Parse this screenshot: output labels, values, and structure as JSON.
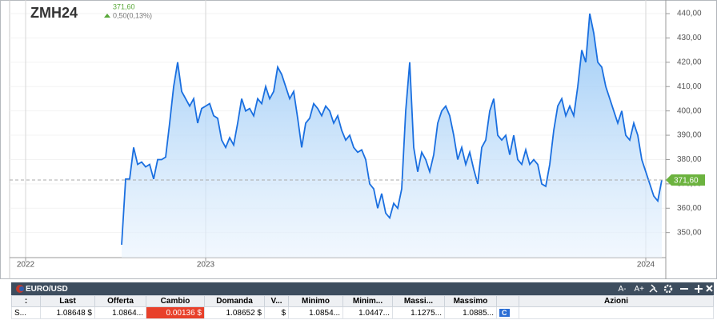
{
  "chart_data": {
    "type": "line",
    "title": "ZMH24",
    "price": "371,60",
    "change": "0,50(0,13%)",
    "values": [
      345,
      372,
      372,
      385,
      378,
      379,
      377,
      378,
      372,
      380,
      380,
      381,
      395,
      410,
      420,
      408,
      405,
      402,
      405,
      395,
      401,
      402,
      403,
      398,
      397,
      388,
      385,
      389,
      386,
      395,
      405,
      400,
      401,
      398,
      405,
      403,
      410,
      405,
      408,
      418,
      415,
      410,
      405,
      408,
      397,
      385,
      395,
      397,
      403,
      401,
      398,
      402,
      400,
      395,
      398,
      392,
      388,
      390,
      385,
      383,
      384,
      380,
      370,
      368,
      360,
      366,
      358,
      356,
      362,
      360,
      368,
      400,
      420,
      385,
      375,
      383,
      380,
      375,
      382,
      395,
      400,
      402,
      398,
      390,
      380,
      385,
      378,
      383,
      376,
      370,
      385,
      388,
      400,
      405,
      390,
      388,
      390,
      382,
      390,
      380,
      378,
      384,
      378,
      380,
      378,
      370,
      369,
      378,
      392,
      402,
      405,
      398,
      402,
      398,
      410,
      425,
      420,
      440,
      432,
      420,
      418,
      410,
      405,
      400,
      395,
      400,
      390,
      388,
      395,
      390,
      380,
      375,
      370,
      365,
      363,
      371.6
    ],
    "color": "#1a6fe0",
    "xlim": [
      -28,
      136
    ],
    "xticks": [
      {
        "value": -24,
        "label": "2022"
      },
      {
        "value": 21,
        "label": "2023"
      },
      {
        "value": 131,
        "label": "2024"
      }
    ],
    "ylim": [
      339.7,
      445.6
    ],
    "yticks": [
      {
        "value": 350,
        "label": "350,00"
      },
      {
        "value": 360,
        "label": "360,00"
      },
      {
        "value": 370,
        "label": "370,00"
      },
      {
        "value": 380,
        "label": "380,00"
      },
      {
        "value": 390,
        "label": "390,00"
      },
      {
        "value": 400,
        "label": "400,00"
      },
      {
        "value": 410,
        "label": "410,00"
      },
      {
        "value": 420,
        "label": "420,00"
      },
      {
        "value": 430,
        "label": "430,00"
      },
      {
        "value": 440,
        "label": "440,00"
      }
    ],
    "grid": true
  },
  "table": {
    "title": "EURO/USD",
    "controls": [
      "A-",
      "A+"
    ],
    "columns": [
      ":",
      "Last",
      "Offerta",
      "Cambio",
      "Domanda",
      "V...",
      "Minimo",
      "Minim...",
      "Massi...",
      "Massimo",
      "",
      "Azioni"
    ],
    "rows": [
      [
        "S...",
        "1.08648 $",
        "1.0864...",
        "0.00136 $",
        "1.08652 $",
        "$",
        "1.0854...",
        "1.0447...",
        "1.1275...",
        "1.0885...",
        "C",
        ""
      ]
    ]
  }
}
